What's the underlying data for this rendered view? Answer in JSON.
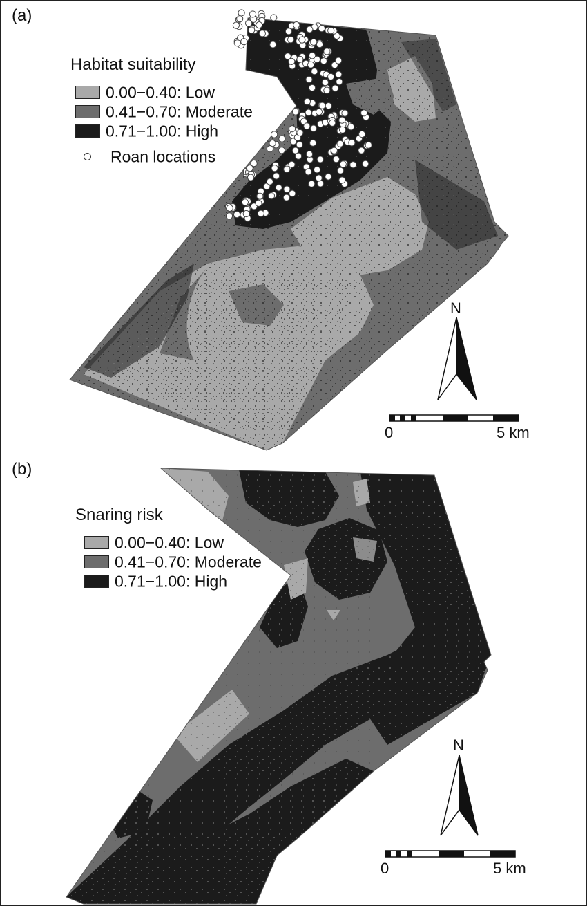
{
  "panel_a": {
    "label": "(a)",
    "legend_title": "Habitat suitability",
    "classes": [
      {
        "text": "0.00−0.40: Low",
        "color": "#a9a9a9"
      },
      {
        "text": "0.41−0.70: Moderate",
        "color": "#6d6d6d"
      },
      {
        "text": "0.71−1.00: High",
        "color": "#1b1b1b"
      }
    ],
    "points_label": "Roan locations",
    "north": "N",
    "scale_start": "0",
    "scale_end": "5 km"
  },
  "panel_b": {
    "label": "(b)",
    "legend_title": "Snaring risk",
    "classes": [
      {
        "text": "0.00−0.40: Low",
        "color": "#a9a9a9"
      },
      {
        "text": "0.41−0.70: Moderate",
        "color": "#6d6d6d"
      },
      {
        "text": "0.71−1.00: High",
        "color": "#1b1b1b"
      }
    ],
    "north": "N",
    "scale_start": "0",
    "scale_end": "5 km"
  },
  "colors": {
    "low": "#a9a9a9",
    "moderate": "#6d6d6d",
    "high": "#1b1b1b",
    "roan_point_fill": "#ffffff",
    "roan_point_stroke": "#444444"
  }
}
